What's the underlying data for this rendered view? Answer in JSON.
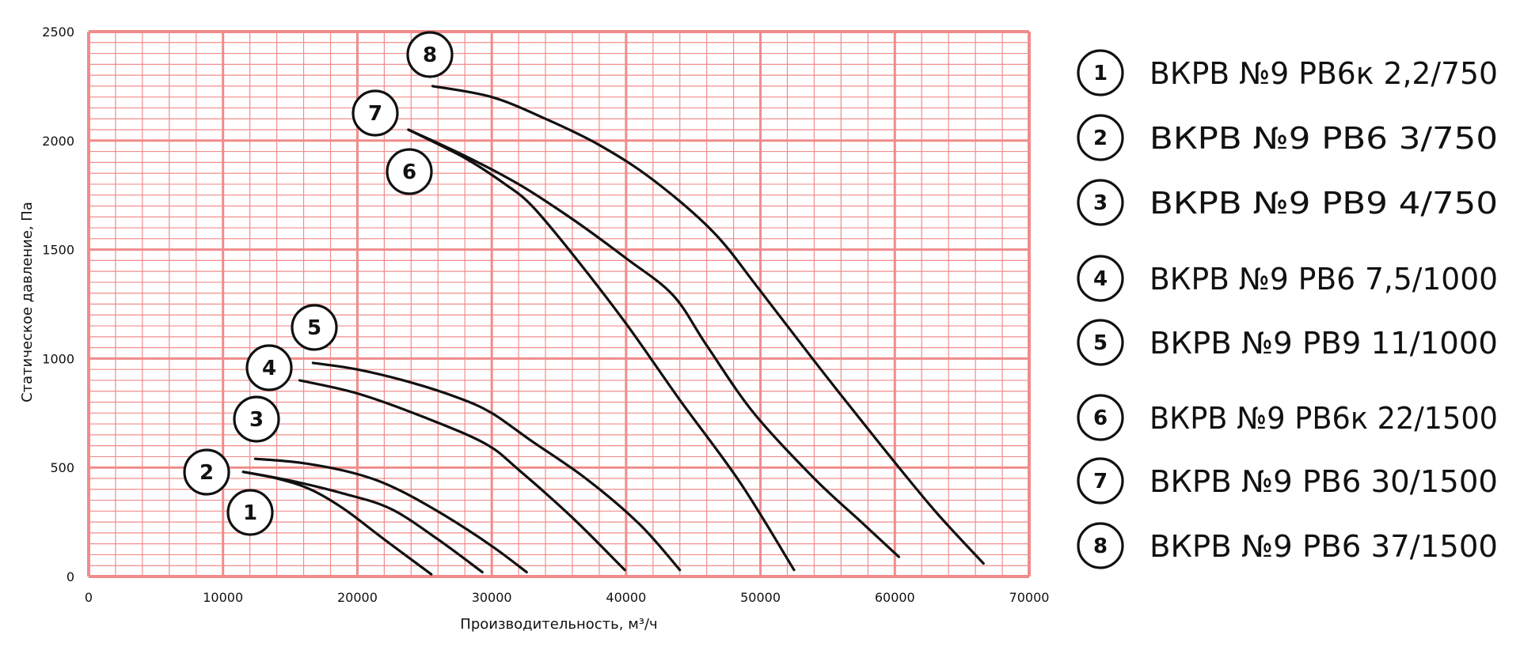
{
  "chart_data": {
    "type": "line",
    "title": "",
    "xlabel": "Производительность, м³/ч",
    "ylabel": "Статическое давление, Па",
    "xlim": [
      0,
      70000
    ],
    "ylim": [
      0,
      2500
    ],
    "x_ticks": [
      "0",
      "10000",
      "20000",
      "30000",
      "40000",
      "50000",
      "60000",
      "70000"
    ],
    "y_ticks": [
      "0",
      "500",
      "1000",
      "1500",
      "2000",
      "2500"
    ],
    "grid": true,
    "grid_color": "#f08c8c",
    "line_color": "#111111",
    "legend_position": "right",
    "series": [
      {
        "marker": "1",
        "label": "ВКРВ  №9 РВ6к 2,2/750",
        "x": [
          11500,
          14000,
          16500,
          19000,
          22000,
          25500
        ],
        "y": [
          480,
          450,
          400,
          310,
          170,
          10
        ]
      },
      {
        "marker": "2",
        "label": "ВКРВ  №9 РВ6 3/750",
        "x": [
          11500,
          15000,
          19000,
          22500,
          26000,
          29300
        ],
        "y": [
          480,
          440,
          380,
          310,
          170,
          20
        ]
      },
      {
        "marker": "3",
        "label": "ВКРВ  №9 РВ9 4/750",
        "x": [
          12400,
          16000,
          20000,
          23000,
          26500,
          30000,
          32600
        ],
        "y": [
          540,
          520,
          470,
          400,
          280,
          140,
          20
        ]
      },
      {
        "marker": "4",
        "label": "ВКРВ  №9 РВ6 7,5/1000",
        "x": [
          15700,
          20000,
          25000,
          29500,
          32000,
          36000,
          39900
        ],
        "y": [
          900,
          840,
          730,
          610,
          490,
          270,
          30
        ]
      },
      {
        "marker": "5",
        "label": "ВКРВ  №9 РВ9 11/1000",
        "x": [
          16700,
          20000,
          24000,
          27500,
          30000,
          33000,
          37000,
          41000,
          44000
        ],
        "y": [
          980,
          950,
          890,
          820,
          750,
          620,
          450,
          240,
          30
        ]
      },
      {
        "marker": "6",
        "label": "ВКРВ  №9 РВ6к 22/1500",
        "x": [
          23800,
          28000,
          31000,
          33000,
          36000,
          40000,
          44000,
          48500,
          52500
        ],
        "y": [
          2050,
          1920,
          1800,
          1700,
          1480,
          1160,
          810,
          430,
          30
        ]
      },
      {
        "marker": "7",
        "label": "ВКРВ  №9 РВ6 30/1500",
        "x": [
          23800,
          28000,
          32000,
          36000,
          40000,
          43500,
          46000,
          49500,
          54000,
          57500,
          60300
        ],
        "y": [
          2050,
          1930,
          1800,
          1640,
          1460,
          1290,
          1060,
          750,
          450,
          250,
          90
        ]
      },
      {
        "marker": "8",
        "label": "ВКРВ  №9 РВ6 37/1500",
        "x": [
          25600,
          30000,
          34000,
          38000,
          42000,
          46500,
          50000,
          54500,
          59000,
          63000,
          66600
        ],
        "y": [
          2250,
          2200,
          2100,
          1980,
          1820,
          1580,
          1310,
          950,
          600,
          300,
          60
        ]
      }
    ]
  }
}
